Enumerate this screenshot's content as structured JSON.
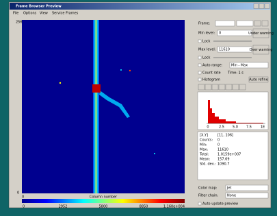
{
  "window": {
    "title": "Frame Browser Preview",
    "menu": [
      "File",
      "Options",
      "View",
      "Service Frames"
    ]
  },
  "image": {
    "y_labels": [
      "256",
      "0"
    ],
    "x_label": "Column number",
    "x_start": "0",
    "colorbar_labels": [
      "0",
      "2952",
      "5800",
      "8850",
      "1.160e+004"
    ]
  },
  "panel": {
    "frame_label": "Frame:",
    "min_level_label": "Min level:",
    "min_level": "0",
    "under_warning": "Under warning",
    "lock": "Lock",
    "max_level_label": "Max level:",
    "max_level": "11610",
    "over_warning": "Over warning",
    "lock2": "Lock",
    "auto_range_label": "Auto range:",
    "auto_range": "Min - Max",
    "count_rate": "Count rate",
    "time": "Time: 1 s",
    "histogram": "Histogram",
    "auto_refine": "Auto refine",
    "hist_ticks": [
      "0",
      "2.5",
      "5.0",
      "7.5",
      "1E"
    ],
    "stats": [
      [
        "[X,Y]",
        "[11, 106]"
      ],
      [
        "Counts:",
        "0"
      ],
      [
        "Min:",
        "0"
      ],
      [
        "Max:",
        "11610"
      ],
      [
        "Total:",
        "1.0159e+007"
      ],
      [
        "Mean:",
        "157.69"
      ],
      [
        "Std. dev.:",
        "1090.7"
      ]
    ],
    "color_map_label": "Color map:",
    "color_map": "Jet",
    "filter_chain_label": "Filter chain:",
    "filter_chain": "None",
    "auto_update": "Auto update preview"
  }
}
